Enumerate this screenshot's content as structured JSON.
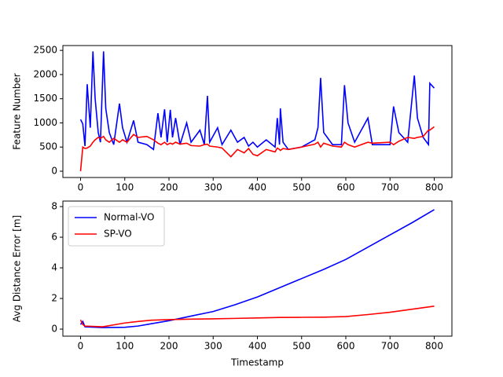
{
  "chart_data": [
    {
      "type": "line",
      "ylabel": "Feature Number",
      "x": [
        0,
        5,
        10,
        15,
        22,
        28,
        33,
        40,
        45,
        52,
        57,
        65,
        75,
        88,
        95,
        105,
        120,
        130,
        150,
        165,
        175,
        182,
        190,
        196,
        203,
        208,
        215,
        225,
        240,
        250,
        270,
        280,
        287,
        292,
        310,
        320,
        340,
        355,
        370,
        380,
        390,
        400,
        420,
        440,
        445,
        450,
        452,
        458,
        470,
        500,
        530,
        537,
        543,
        550,
        570,
        590,
        597,
        605,
        620,
        650,
        660,
        700,
        708,
        720,
        740,
        755,
        762,
        775,
        787,
        790,
        800
      ],
      "series": [
        {
          "color": "#0000ff",
          "values": [
            1070,
            980,
            520,
            1800,
            900,
            2480,
            1500,
            800,
            600,
            2480,
            1300,
            800,
            550,
            1400,
            900,
            600,
            1050,
            600,
            550,
            450,
            1200,
            700,
            1280,
            600,
            1270,
            700,
            1100,
            550,
            1000,
            600,
            850,
            550,
            1560,
            600,
            900,
            550,
            850,
            600,
            700,
            520,
            600,
            500,
            650,
            500,
            1100,
            550,
            1300,
            600,
            450,
            500,
            650,
            900,
            1930,
            800,
            550,
            550,
            1780,
            1000,
            600,
            1100,
            550,
            550,
            1340,
            800,
            600,
            1980,
            1100,
            700,
            550,
            1820,
            1720
          ]
        },
        {
          "color": "#ff0000",
          "values": [
            0,
            500,
            470,
            480,
            520,
            600,
            650,
            700,
            680,
            720,
            650,
            600,
            680,
            600,
            650,
            600,
            760,
            700,
            720,
            650,
            580,
            550,
            600,
            550,
            580,
            560,
            600,
            560,
            580,
            530,
            520,
            550,
            560,
            520,
            500,
            480,
            300,
            450,
            380,
            470,
            350,
            320,
            450,
            400,
            480,
            450,
            430,
            470,
            450,
            500,
            560,
            600,
            500,
            580,
            520,
            500,
            600,
            550,
            500,
            600,
            580,
            600,
            550,
            620,
            700,
            680,
            700,
            720,
            850,
            850,
            920
          ]
        }
      ],
      "xlim": [
        -40,
        840
      ],
      "xticks": [
        0,
        100,
        200,
        300,
        400,
        500,
        600,
        700,
        800
      ],
      "ylim": [
        -130,
        2600
      ],
      "yticks": [
        0,
        500,
        1000,
        1500,
        2000,
        2500
      ]
    },
    {
      "type": "line",
      "xlabel": "Timestamp",
      "ylabel": "Avg Distance Error [m]",
      "legend": "upper left",
      "x": [
        0,
        5,
        10,
        50,
        100,
        130,
        160,
        200,
        250,
        300,
        350,
        400,
        450,
        500,
        550,
        600,
        650,
        700,
        750,
        800
      ],
      "series": [
        {
          "name": "Normal-VO",
          "color": "#0000ff",
          "values": [
            0.3,
            0.5,
            0.15,
            0.1,
            0.12,
            0.2,
            0.35,
            0.55,
            0.85,
            1.15,
            1.6,
            2.1,
            2.7,
            3.3,
            3.9,
            4.55,
            5.35,
            6.15,
            6.95,
            7.8
          ]
        },
        {
          "name": "SP-VO",
          "color": "#ff0000",
          "values": [
            0.6,
            0.3,
            0.2,
            0.15,
            0.4,
            0.5,
            0.58,
            0.62,
            0.65,
            0.67,
            0.7,
            0.73,
            0.76,
            0.77,
            0.78,
            0.82,
            0.95,
            1.1,
            1.3,
            1.5
          ]
        }
      ],
      "xlim": [
        -40,
        840
      ],
      "xticks": [
        0,
        100,
        200,
        300,
        400,
        500,
        600,
        700,
        800
      ],
      "ylim": [
        -0.46,
        8.36
      ],
      "yticks": [
        0,
        2,
        4,
        6,
        8
      ]
    }
  ]
}
